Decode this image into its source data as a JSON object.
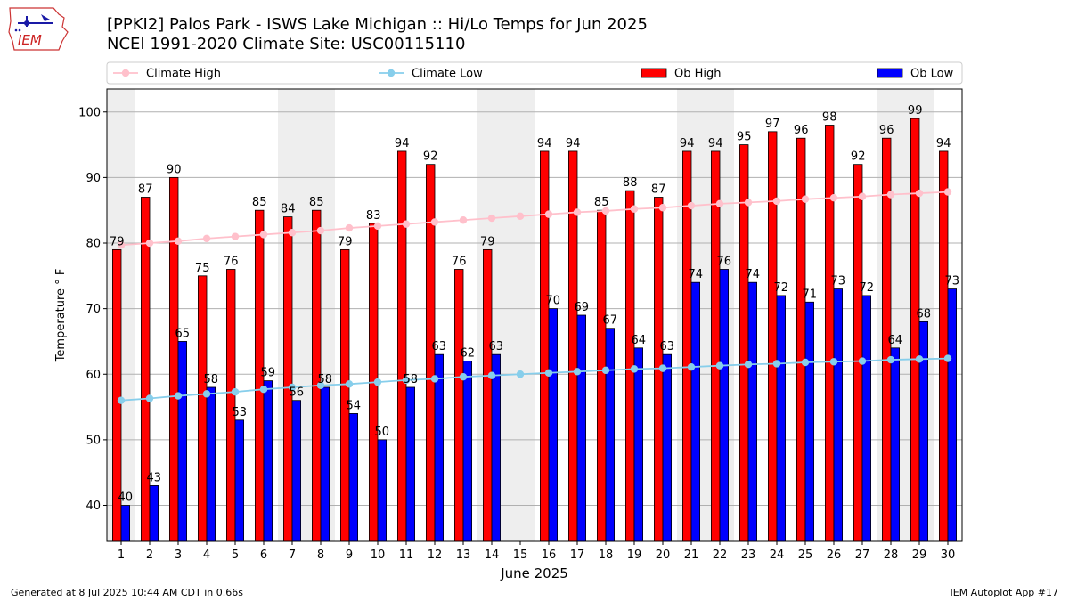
{
  "header": {
    "title_line1": "[PPKI2] Palos Park - ISWS Lake Michigan :: Hi/Lo Temps for Jun 2025",
    "title_line2": "NCEI 1991-2020 Climate Site: USC00115110",
    "logo_text": "IEM"
  },
  "footer": {
    "generated": "Generated at 8 Jul 2025 10:44 AM CDT in 0.66s",
    "app": "IEM Autoplot App #17"
  },
  "colors": {
    "ob_high": "#ff0000",
    "ob_low": "#0000ff",
    "climate_high": "#ffc0cb",
    "climate_low": "#87ceeb",
    "weekend_shade": "#eeeeee",
    "grid": "#b0b0b0"
  },
  "chart_data": {
    "type": "bar",
    "xlabel": "June 2025",
    "ylabel": "Temperature ° F",
    "ylim": [
      34.5,
      103.5
    ],
    "yticks": [
      40,
      50,
      60,
      70,
      80,
      90,
      100
    ],
    "grid": "horizontal",
    "legend_position": "top",
    "categories": [
      "1",
      "2",
      "3",
      "4",
      "5",
      "6",
      "7",
      "8",
      "9",
      "10",
      "11",
      "12",
      "13",
      "14",
      "15",
      "16",
      "17",
      "18",
      "19",
      "20",
      "21",
      "22",
      "23",
      "24",
      "25",
      "26",
      "27",
      "28",
      "29",
      "30"
    ],
    "shaded_days": [
      1,
      7,
      8,
      14,
      15,
      21,
      22,
      28,
      29
    ],
    "series": [
      {
        "name": "Climate High",
        "kind": "line",
        "values": [
          79.7,
          80.0,
          80.3,
          80.7,
          81.0,
          81.3,
          81.6,
          81.9,
          82.3,
          82.6,
          82.9,
          83.2,
          83.5,
          83.8,
          84.1,
          84.4,
          84.7,
          84.9,
          85.2,
          85.4,
          85.7,
          86.0,
          86.2,
          86.4,
          86.7,
          86.9,
          87.1,
          87.4,
          87.6,
          87.8
        ]
      },
      {
        "name": "Climate Low",
        "kind": "line",
        "values": [
          56.0,
          56.3,
          56.7,
          57.0,
          57.3,
          57.7,
          58.0,
          58.3,
          58.5,
          58.8,
          59.1,
          59.3,
          59.6,
          59.8,
          60.0,
          60.2,
          60.4,
          60.6,
          60.8,
          60.9,
          61.1,
          61.3,
          61.5,
          61.6,
          61.8,
          61.9,
          62.0,
          62.2,
          62.3,
          62.4
        ]
      },
      {
        "name": "Ob High",
        "kind": "bar",
        "values": [
          79,
          87,
          90,
          75,
          76,
          85,
          84,
          85,
          79,
          83,
          94,
          92,
          76,
          79,
          null,
          94,
          94,
          85,
          88,
          87,
          94,
          94,
          95,
          97,
          96,
          98,
          92,
          96,
          99,
          94
        ]
      },
      {
        "name": "Ob Low",
        "kind": "bar",
        "values": [
          40,
          43,
          65,
          58,
          53,
          59,
          56,
          58,
          54,
          50,
          58,
          63,
          62,
          63,
          null,
          70,
          69,
          67,
          64,
          63,
          74,
          76,
          74,
          72,
          71,
          73,
          72,
          64,
          68,
          73
        ]
      }
    ]
  }
}
